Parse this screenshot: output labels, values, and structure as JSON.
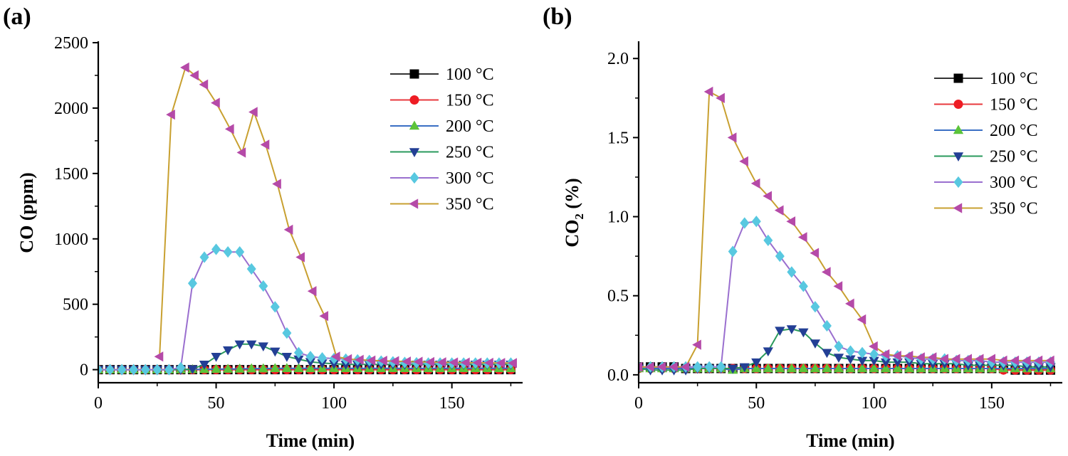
{
  "figure": {
    "panels": [
      {
        "label": "(a)"
      },
      {
        "label": "(b)"
      }
    ]
  },
  "legend": {
    "entries": [
      "100 °C",
      "150 °C",
      "200 °C",
      "250 °C",
      "300 °C",
      "350 °C"
    ]
  },
  "styles": {
    "series": [
      {
        "line": "#333333",
        "marker": "square",
        "fill": "#000000"
      },
      {
        "line": "#e8383d",
        "marker": "circle",
        "fill": "#ee1c24"
      },
      {
        "line": "#3a6fc4",
        "marker": "triangle-up",
        "fill": "#5cc43a"
      },
      {
        "line": "#2a9a5c",
        "marker": "triangle-down",
        "fill": "#233f95"
      },
      {
        "line": "#9a6fcf",
        "marker": "diamond",
        "fill": "#58c8e0"
      },
      {
        "line": "#c8a030",
        "marker": "triangle-left",
        "fill": "#b54aa8"
      }
    ]
  },
  "chart_data": [
    {
      "type": "line",
      "panel": "(a)",
      "title": "",
      "xlabel": "Time (min)",
      "ylabel_main": "CO (ppm)",
      "ylabel_sub": "",
      "ylabel_suffix": "",
      "xlim": [
        0,
        180
      ],
      "ylim": [
        -100,
        2500
      ],
      "xticks": [
        0,
        50,
        100,
        150
      ],
      "xtick_labels": [
        "0",
        "50",
        "100",
        "150"
      ],
      "yticks": [
        0,
        500,
        1000,
        1500,
        2000,
        2500
      ],
      "ytick_labels": [
        "0",
        "500",
        "1000",
        "1500",
        "2000",
        "2500"
      ],
      "legend_position": "top-right",
      "series": [
        {
          "name": "100 °C",
          "x": [
            0,
            5,
            10,
            15,
            20,
            25,
            30,
            35,
            40,
            45,
            50,
            55,
            60,
            65,
            70,
            75,
            80,
            85,
            90,
            95,
            100,
            105,
            110,
            115,
            120,
            125,
            130,
            135,
            140,
            145,
            150,
            155,
            160,
            165,
            170,
            175
          ],
          "y": [
            0,
            0,
            0,
            0,
            0,
            0,
            0,
            0,
            0,
            0,
            0,
            0,
            0,
            0,
            0,
            0,
            0,
            0,
            0,
            0,
            0,
            0,
            0,
            0,
            0,
            0,
            0,
            0,
            0,
            0,
            0,
            0,
            0,
            0,
            0,
            0
          ]
        },
        {
          "name": "150 °C",
          "x": [
            0,
            5,
            10,
            15,
            20,
            25,
            30,
            35,
            40,
            45,
            50,
            55,
            60,
            65,
            70,
            75,
            80,
            85,
            90,
            95,
            100,
            105,
            110,
            115,
            120,
            125,
            130,
            135,
            140,
            145,
            150,
            155,
            160,
            165,
            170,
            175
          ],
          "y": [
            0,
            0,
            0,
            0,
            0,
            0,
            0,
            0,
            0,
            0,
            0,
            0,
            0,
            0,
            0,
            0,
            0,
            0,
            0,
            0,
            0,
            0,
            0,
            0,
            0,
            0,
            0,
            0,
            0,
            0,
            0,
            0,
            0,
            0,
            0,
            0
          ]
        },
        {
          "name": "200 °C",
          "x": [
            0,
            5,
            10,
            15,
            20,
            25,
            30,
            35,
            40,
            45,
            50,
            55,
            60,
            65,
            70,
            75,
            80,
            85,
            90,
            95,
            100,
            105,
            110,
            115,
            120,
            125,
            130,
            135,
            140,
            145,
            150,
            155,
            160,
            165,
            170,
            175
          ],
          "y": [
            0,
            0,
            0,
            0,
            0,
            0,
            0,
            0,
            2,
            3,
            4,
            5,
            6,
            8,
            8,
            10,
            10,
            10,
            10,
            10,
            10,
            10,
            10,
            10,
            10,
            10,
            10,
            10,
            10,
            10,
            10,
            10,
            10,
            10,
            10,
            10
          ]
        },
        {
          "name": "250 °C",
          "x": [
            0,
            5,
            10,
            15,
            20,
            25,
            30,
            35,
            40,
            45,
            50,
            55,
            60,
            65,
            70,
            75,
            80,
            85,
            90,
            95,
            100,
            105,
            110,
            115,
            120,
            125,
            130,
            135,
            140,
            145,
            150,
            155,
            160,
            165,
            170,
            175
          ],
          "y": [
            0,
            0,
            0,
            0,
            0,
            0,
            0,
            0,
            5,
            40,
            100,
            150,
            195,
            195,
            180,
            140,
            100,
            80,
            60,
            50,
            45,
            40,
            40,
            40,
            40,
            40,
            40,
            40,
            40,
            40,
            40,
            40,
            40,
            40,
            40,
            40
          ]
        },
        {
          "name": "300 °C",
          "x": [
            0,
            5,
            10,
            15,
            20,
            25,
            30,
            35,
            40,
            45,
            50,
            55,
            60,
            65,
            70,
            75,
            80,
            85,
            90,
            95,
            100,
            105,
            110,
            115,
            120,
            125,
            130,
            135,
            140,
            145,
            150,
            155,
            160,
            165,
            170,
            175
          ],
          "y": [
            0,
            0,
            0,
            0,
            0,
            0,
            0,
            15,
            660,
            860,
            920,
            900,
            900,
            770,
            640,
            480,
            280,
            130,
            100,
            90,
            85,
            80,
            75,
            70,
            65,
            60,
            55,
            52,
            50,
            50,
            50,
            50,
            50,
            50,
            50,
            50
          ]
        },
        {
          "name": "350 °C",
          "x": [
            26,
            31,
            37,
            41,
            45,
            50,
            56,
            61,
            66,
            71,
            76,
            81,
            86,
            91,
            96,
            101,
            106,
            111,
            116,
            121,
            126,
            131,
            136,
            141,
            146,
            151,
            156,
            161,
            166,
            171,
            176
          ],
          "y": [
            100,
            1950,
            2310,
            2250,
            2180,
            2040,
            1840,
            1660,
            1970,
            1720,
            1420,
            1070,
            860,
            600,
            410,
            100,
            80,
            75,
            70,
            68,
            65,
            62,
            60,
            58,
            56,
            55,
            54,
            53,
            52,
            51,
            50
          ]
        }
      ]
    },
    {
      "type": "line",
      "panel": "(b)",
      "title": "",
      "xlabel": "Time (min)",
      "ylabel_main": "CO",
      "ylabel_sub": "2",
      "ylabel_suffix": " (%)",
      "xlim": [
        0,
        180
      ],
      "ylim": [
        -0.05,
        2.1
      ],
      "xticks": [
        0,
        50,
        100,
        150
      ],
      "xtick_labels": [
        "0",
        "50",
        "100",
        "150"
      ],
      "yticks": [
        0,
        0.5,
        1.0,
        1.5,
        2.0
      ],
      "ytick_labels": [
        "0.0",
        "0.5",
        "1.0",
        "1.5",
        "2.0"
      ],
      "legend_position": "top-right",
      "series": [
        {
          "name": "100 °C",
          "x": [
            0,
            5,
            10,
            15,
            20,
            25,
            30,
            35,
            40,
            45,
            50,
            55,
            60,
            65,
            70,
            75,
            80,
            85,
            90,
            95,
            100,
            105,
            110,
            115,
            120,
            125,
            130,
            135,
            140,
            145,
            150,
            155,
            160,
            165,
            170,
            175
          ],
          "y": [
            0.05,
            0.05,
            0.05,
            0.05,
            0.04,
            0.04,
            0.04,
            0.04,
            0.04,
            0.04,
            0.04,
            0.04,
            0.04,
            0.04,
            0.04,
            0.04,
            0.04,
            0.04,
            0.04,
            0.04,
            0.04,
            0.04,
            0.04,
            0.04,
            0.04,
            0.04,
            0.04,
            0.04,
            0.04,
            0.04,
            0.04,
            0.04,
            0.03,
            0.03,
            0.03,
            0.03
          ]
        },
        {
          "name": "150 °C",
          "x": [
            0,
            5,
            10,
            15,
            20,
            25,
            30,
            35,
            40,
            45,
            50,
            55,
            60,
            65,
            70,
            75,
            80,
            85,
            90,
            95,
            100,
            105,
            110,
            115,
            120,
            125,
            130,
            135,
            140,
            145,
            150,
            155,
            160,
            165,
            170,
            175
          ],
          "y": [
            0.04,
            0.04,
            0.04,
            0.04,
            0.04,
            0.04,
            0.04,
            0.04,
            0.04,
            0.04,
            0.04,
            0.04,
            0.04,
            0.04,
            0.04,
            0.04,
            0.04,
            0.04,
            0.04,
            0.04,
            0.04,
            0.04,
            0.04,
            0.04,
            0.04,
            0.04,
            0.04,
            0.04,
            0.04,
            0.04,
            0.04,
            0.03,
            0.03,
            0.03,
            0.03,
            0.03
          ]
        },
        {
          "name": "200 °C",
          "x": [
            0,
            5,
            10,
            15,
            20,
            25,
            30,
            35,
            40,
            45,
            50,
            55,
            60,
            65,
            70,
            75,
            80,
            85,
            90,
            95,
            100,
            105,
            110,
            115,
            120,
            125,
            130,
            135,
            140,
            145,
            150,
            155,
            160,
            165,
            170,
            175
          ],
          "y": [
            0.04,
            0.04,
            0.04,
            0.04,
            0.04,
            0.04,
            0.04,
            0.04,
            0.03,
            0.04,
            0.04,
            0.04,
            0.04,
            0.04,
            0.04,
            0.04,
            0.04,
            0.04,
            0.04,
            0.04,
            0.04,
            0.04,
            0.04,
            0.04,
            0.04,
            0.04,
            0.04,
            0.04,
            0.04,
            0.04,
            0.04,
            0.04,
            0.04,
            0.04,
            0.04,
            0.04
          ]
        },
        {
          "name": "250 °C",
          "x": [
            0,
            5,
            10,
            15,
            20,
            25,
            30,
            35,
            40,
            45,
            50,
            55,
            60,
            65,
            70,
            75,
            80,
            85,
            90,
            95,
            100,
            105,
            110,
            115,
            120,
            125,
            130,
            135,
            140,
            145,
            150,
            155,
            160,
            165,
            170,
            175
          ],
          "y": [
            0.04,
            0.03,
            0.03,
            0.03,
            0.03,
            0.04,
            0.04,
            0.04,
            0.04,
            0.05,
            0.08,
            0.15,
            0.28,
            0.29,
            0.27,
            0.2,
            0.14,
            0.11,
            0.1,
            0.09,
            0.09,
            0.08,
            0.08,
            0.08,
            0.07,
            0.07,
            0.07,
            0.07,
            0.06,
            0.06,
            0.06,
            0.06,
            0.06,
            0.05,
            0.05,
            0.05
          ]
        },
        {
          "name": "300 °C",
          "x": [
            0,
            5,
            10,
            15,
            20,
            25,
            30,
            35,
            40,
            45,
            50,
            55,
            60,
            65,
            70,
            75,
            80,
            85,
            90,
            95,
            100,
            105,
            110,
            115,
            120,
            125,
            130,
            135,
            140,
            145,
            150,
            155,
            160,
            165,
            170,
            175
          ],
          "y": [
            0.05,
            0.05,
            0.05,
            0.05,
            0.05,
            0.05,
            0.05,
            0.05,
            0.78,
            0.96,
            0.97,
            0.85,
            0.75,
            0.65,
            0.56,
            0.43,
            0.31,
            0.18,
            0.15,
            0.14,
            0.13,
            0.12,
            0.12,
            0.11,
            0.1,
            0.1,
            0.1,
            0.09,
            0.09,
            0.09,
            0.08,
            0.08,
            0.08,
            0.08,
            0.08,
            0.08
          ]
        },
        {
          "name": "350 °C",
          "x": [
            0,
            5,
            10,
            15,
            20,
            25,
            30,
            35,
            40,
            45,
            50,
            55,
            60,
            65,
            70,
            75,
            80,
            85,
            90,
            95,
            100,
            105,
            110,
            115,
            120,
            125,
            130,
            135,
            140,
            145,
            150,
            155,
            160,
            165,
            170,
            175
          ],
          "y": [
            0.05,
            0.05,
            0.05,
            0.05,
            0.05,
            0.19,
            1.79,
            1.75,
            1.5,
            1.35,
            1.21,
            1.13,
            1.04,
            0.97,
            0.87,
            0.77,
            0.65,
            0.56,
            0.45,
            0.35,
            0.18,
            0.13,
            0.12,
            0.12,
            0.11,
            0.11,
            0.1,
            0.1,
            0.1,
            0.1,
            0.1,
            0.09,
            0.09,
            0.09,
            0.09,
            0.09
          ]
        }
      ]
    }
  ]
}
